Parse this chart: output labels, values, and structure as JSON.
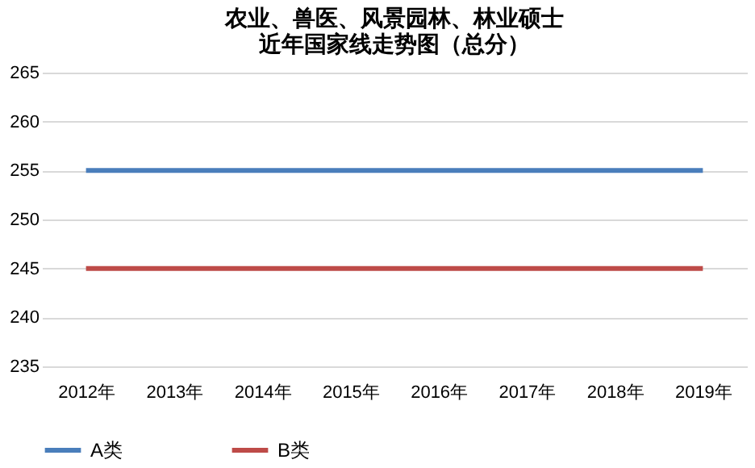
{
  "chart_data": {
    "type": "line",
    "title": [
      "农业、兽医、风景园林、林业硕士",
      "近年国家线走势图（总分）"
    ],
    "categories": [
      "2012年",
      "2013年",
      "2014年",
      "2015年",
      "2016年",
      "2017年",
      "2018年",
      "2019年"
    ],
    "series": [
      {
        "name": "A类",
        "color": "#4a7ebb",
        "values": [
          255,
          255,
          255,
          255,
          255,
          255,
          255,
          255
        ]
      },
      {
        "name": "B类",
        "color": "#be4b48",
        "values": [
          245,
          245,
          245,
          245,
          245,
          245,
          245,
          245
        ]
      }
    ],
    "ylim": [
      235,
      265
    ],
    "yticks": [
      235,
      240,
      245,
      250,
      255,
      260,
      265
    ],
    "grid": "y",
    "legend": "bottom",
    "marker": "none",
    "line_style": "solid"
  }
}
